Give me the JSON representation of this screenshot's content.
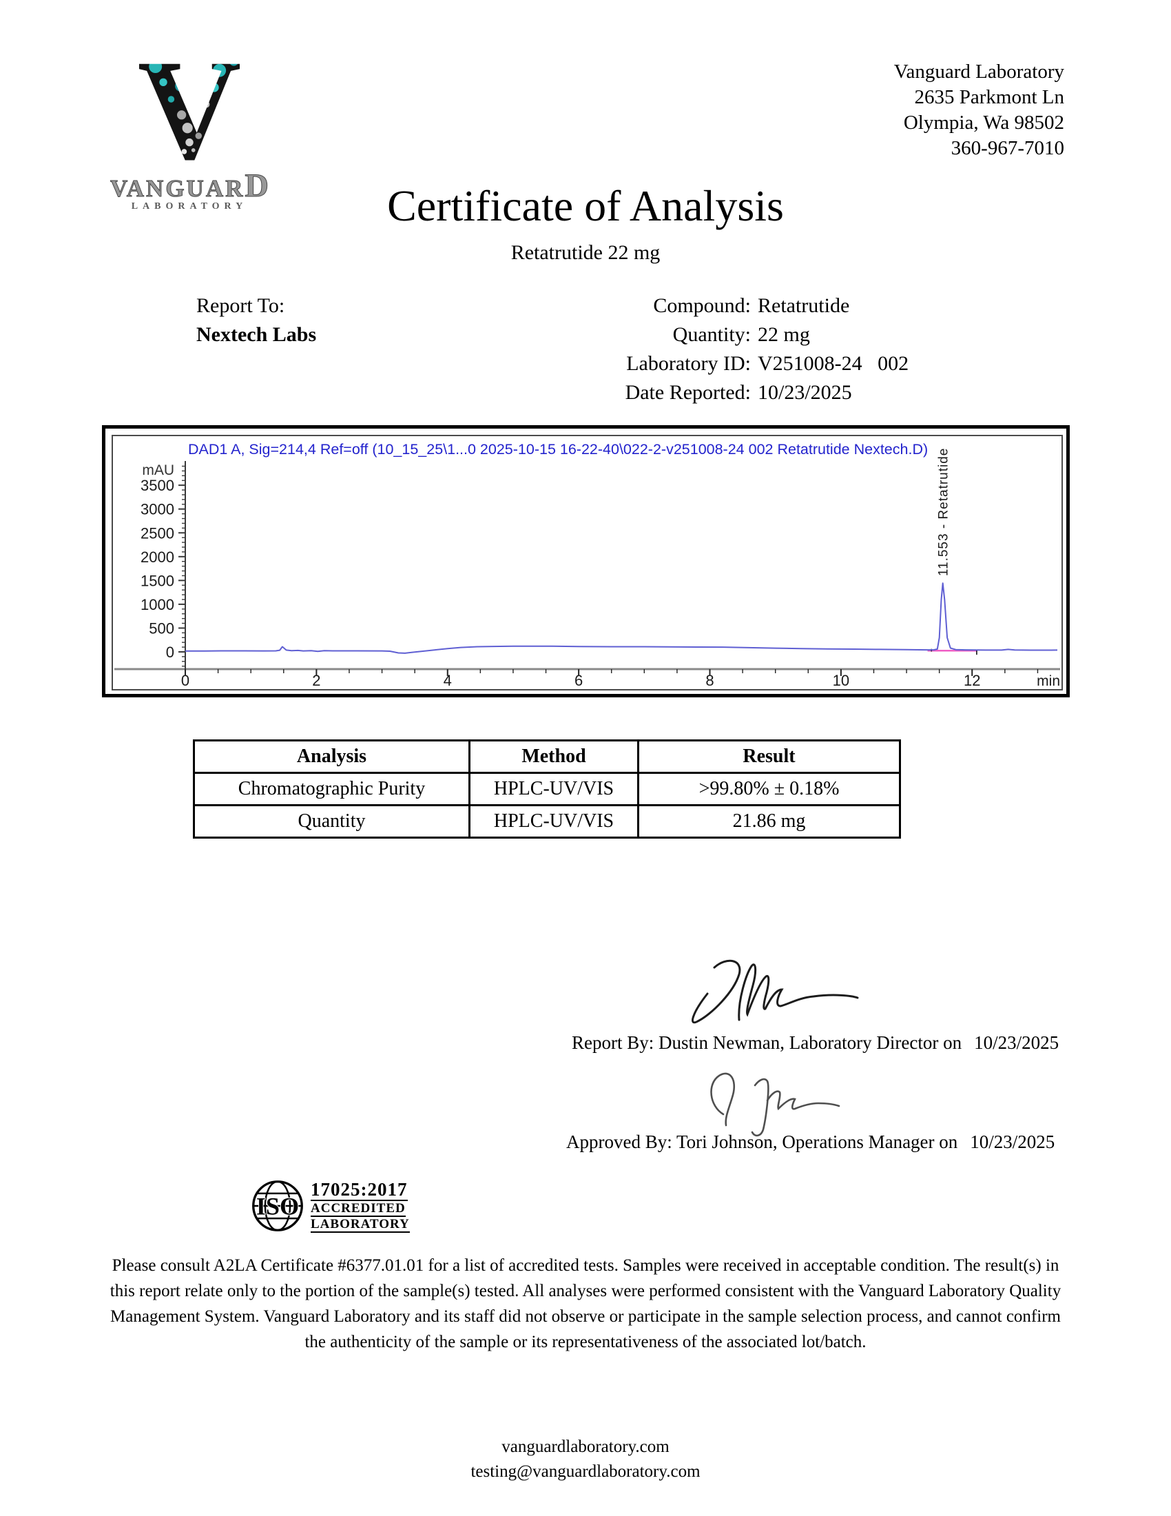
{
  "header": {
    "logo": {
      "letter": "V",
      "wordmark_main": "VANGUAR",
      "wordmark_d": "D",
      "subtext": "LABORATORY"
    },
    "address": {
      "name": "Vanguard Laboratory",
      "street": "2635 Parkmont Ln",
      "city": "Olympia, Wa 98502",
      "phone": "360-967-7010"
    }
  },
  "title": "Certificate of Analysis",
  "subtitle": "Retatrutide 22 mg",
  "report_info": {
    "report_to_label": "Report To:",
    "report_to_value": "Nextech Labs",
    "fields": [
      {
        "label": "Compound:",
        "value": "Retatrutide"
      },
      {
        "label": "Quantity:",
        "value": "22 mg"
      },
      {
        "label": "Laboratory ID:",
        "value": "V251008-24   002"
      },
      {
        "label": "Date Reported:",
        "value": "10/23/2025"
      }
    ]
  },
  "chart_data": {
    "type": "line",
    "title": "DAD1 A, Sig=214,4 Ref=off (10_15_25\\1...0 2025-10-15 16-22-40\\022-2-v251008-24 002 Retatrutide Nextech.D)",
    "ylabel": "mAU",
    "xlabel": "min",
    "xlim": [
      0,
      13.3
    ],
    "ylim": [
      -380,
      4000
    ],
    "xticks": [
      0,
      2,
      4,
      6,
      8,
      10,
      12
    ],
    "yticks": [
      0,
      500,
      1000,
      1500,
      2000,
      2500,
      3000,
      3500
    ],
    "x_minor_step": 0.5,
    "y_minor_step": 100,
    "grid": false,
    "legend": "none",
    "title_color": "#2323cd",
    "trace_color": "#5f5fd3",
    "axis_color": "#3a3a3a",
    "baseline_axis_color": "#8a8a8a",
    "peak": {
      "retention_time": 11.553,
      "compound": "Retatrutide",
      "label": "11.553 -  Retatrutide",
      "apex_mau": 1445
    },
    "integration": {
      "x1": 11.32,
      "x2": 12.08,
      "y": 26,
      "color": "#ef5ec4",
      "markers": [
        {
          "x": 11.38,
          "y1": 8,
          "y2": 62
        },
        {
          "x": 12.07,
          "y1": -60,
          "y2": 45
        }
      ]
    },
    "series": [
      {
        "name": "DAD1 A",
        "points": [
          [
            0,
            18
          ],
          [
            0.3,
            18
          ],
          [
            0.55,
            22
          ],
          [
            0.9,
            22
          ],
          [
            1.2,
            20
          ],
          [
            1.38,
            22
          ],
          [
            1.44,
            35
          ],
          [
            1.48,
            108
          ],
          [
            1.54,
            38
          ],
          [
            1.62,
            25
          ],
          [
            1.72,
            30
          ],
          [
            1.8,
            20
          ],
          [
            1.92,
            26
          ],
          [
            2.02,
            12
          ],
          [
            2.12,
            24
          ],
          [
            2.25,
            22
          ],
          [
            2.6,
            22
          ],
          [
            3.0,
            20
          ],
          [
            3.12,
            15
          ],
          [
            3.25,
            -22
          ],
          [
            3.35,
            -28
          ],
          [
            3.45,
            -12
          ],
          [
            3.6,
            12
          ],
          [
            3.8,
            40
          ],
          [
            4.0,
            68
          ],
          [
            4.2,
            92
          ],
          [
            4.45,
            108
          ],
          [
            4.7,
            115
          ],
          [
            5.0,
            118
          ],
          [
            5.3,
            120
          ],
          [
            5.6,
            118
          ],
          [
            6.0,
            112
          ],
          [
            6.5,
            108
          ],
          [
            7.0,
            108
          ],
          [
            7.4,
            104
          ],
          [
            7.8,
            102
          ],
          [
            8.2,
            100
          ],
          [
            8.6,
            88
          ],
          [
            9.0,
            78
          ],
          [
            9.4,
            68
          ],
          [
            9.8,
            62
          ],
          [
            10.2,
            58
          ],
          [
            10.6,
            52
          ],
          [
            11.0,
            48
          ],
          [
            11.2,
            44
          ],
          [
            11.32,
            42
          ],
          [
            11.42,
            44
          ],
          [
            11.47,
            60
          ],
          [
            11.5,
            300
          ],
          [
            11.53,
            1100
          ],
          [
            11.553,
            1445
          ],
          [
            11.58,
            1100
          ],
          [
            11.62,
            300
          ],
          [
            11.67,
            80
          ],
          [
            11.75,
            48
          ],
          [
            11.9,
            42
          ],
          [
            12.05,
            40
          ],
          [
            12.2,
            38
          ],
          [
            12.45,
            38
          ],
          [
            12.55,
            52
          ],
          [
            12.65,
            40
          ],
          [
            12.9,
            36
          ],
          [
            13.2,
            36
          ],
          [
            13.3,
            38
          ]
        ]
      }
    ]
  },
  "table": {
    "headers": [
      "Analysis",
      "Method",
      "Result"
    ],
    "rows": [
      {
        "analysis": "Chromatographic Purity",
        "method": "HPLC-UV/VIS",
        "result": ">99.80% ± 0.18%"
      },
      {
        "analysis": "Quantity",
        "method": "HPLC-UV/VIS",
        "result": "21.86 mg"
      }
    ]
  },
  "signatures": {
    "report_by": {
      "label": "Report By: Dustin Newman, Laboratory Director on",
      "date": "10/23/2025"
    },
    "approved_by": {
      "label": "Approved By: Tori Johnson, Operations Manager on",
      "date": "10/23/2025"
    }
  },
  "accreditation": {
    "iso": "ISO",
    "line1": "17025:2017",
    "line2": "ACCREDITED",
    "line3": "LABORATORY"
  },
  "disclaimer": "Please consult A2LA Certificate #6377.01.01 for a list of accredited tests. Samples were received in acceptable condition. The result(s) in this report relate only to the portion of the sample(s) tested. All analyses were performed consistent with the Vanguard Laboratory Quality Management System. Vanguard Laboratory and its staff did not observe or participate in the sample selection process, and cannot confirm the authenticity of the sample or its representativeness of the associated lot/batch.",
  "footer": {
    "website": "vanguardlaboratory.com",
    "email": "testing@vanguardlaboratory.com"
  }
}
